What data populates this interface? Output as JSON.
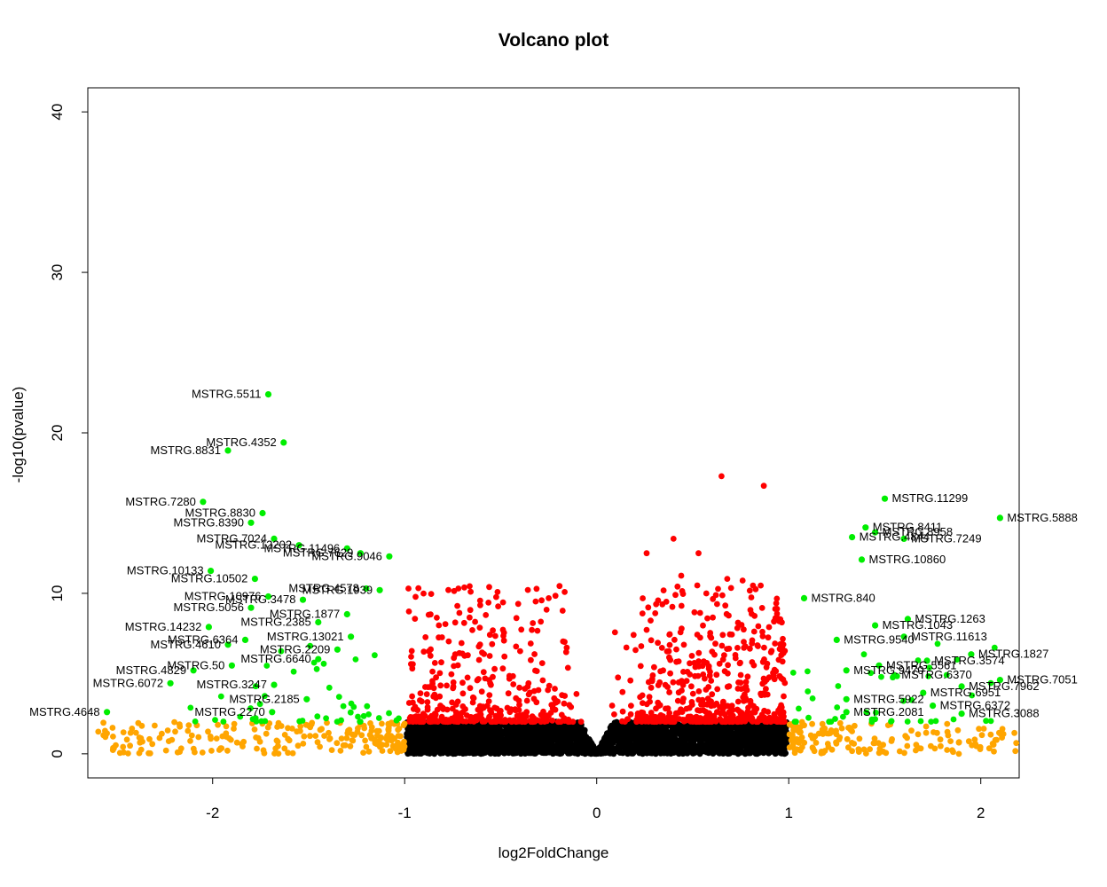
{
  "chart_data": {
    "type": "scatter",
    "title": "Volcano plot",
    "xlabel": "log2FoldChange",
    "ylabel": "-log10(pvalue)",
    "xlim": [
      -2.65,
      2.2
    ],
    "ylim": [
      -1.5,
      41.5
    ],
    "x_ticks": [
      -2,
      -1,
      0,
      1,
      2
    ],
    "y_ticks": [
      0,
      10,
      20,
      30,
      40
    ],
    "grid": false,
    "legend": "none",
    "thresholds": {
      "padj_y": 2,
      "log2fc_abs": 1
    },
    "colors": {
      "not_significant": "#000000",
      "significant": "#ff0000",
      "large_fold_change": "#ffa500",
      "significant_and_large_fold_change": "#00ee00",
      "label": "#000000"
    },
    "highlight_points": [
      {
        "x": -1.71,
        "y": 22.4,
        "label": "MSTRG.5511"
      },
      {
        "x": -1.63,
        "y": 19.4,
        "label": "MSTRG.4352"
      },
      {
        "x": -1.92,
        "y": 18.9,
        "label": "MSTRG.8831"
      },
      {
        "x": -2.05,
        "y": 15.7,
        "label": "MSTRG.7280"
      },
      {
        "x": -1.74,
        "y": 15.0,
        "label": "MSTRG.8830"
      },
      {
        "x": -1.8,
        "y": 14.4,
        "label": "MSTRG.8390"
      },
      {
        "x": -1.68,
        "y": 13.4,
        "label": "MSTRG.7024"
      },
      {
        "x": -1.55,
        "y": 13.0,
        "label": "MSTRG.12202"
      },
      {
        "x": -1.3,
        "y": 12.8,
        "label": "MSTRG.11496"
      },
      {
        "x": -1.23,
        "y": 12.5,
        "label": "MSTRG.7629"
      },
      {
        "x": -1.08,
        "y": 12.3,
        "label": "MSTRG.9046"
      },
      {
        "x": -2.01,
        "y": 11.4,
        "label": "MSTRG.10133"
      },
      {
        "x": -1.78,
        "y": 10.9,
        "label": "MSTRG.10502"
      },
      {
        "x": -1.2,
        "y": 10.3,
        "label": "MSTRG.4578"
      },
      {
        "x": -1.13,
        "y": 10.2,
        "label": "MSTRG.1939"
      },
      {
        "x": -1.71,
        "y": 9.8,
        "label": "MSTRG.10976"
      },
      {
        "x": -1.53,
        "y": 9.6,
        "label": "MSTRG.3478"
      },
      {
        "x": -1.8,
        "y": 9.1,
        "label": "MSTRG.5056"
      },
      {
        "x": -1.3,
        "y": 8.7,
        "label": "MSTRG.1877"
      },
      {
        "x": -1.45,
        "y": 8.2,
        "label": "MSTRG.2385"
      },
      {
        "x": -2.02,
        "y": 7.9,
        "label": "MSTRG.14232"
      },
      {
        "x": -1.28,
        "y": 7.3,
        "label": "MSTRG.13021"
      },
      {
        "x": -1.83,
        "y": 7.1,
        "label": "MSTRG.6364"
      },
      {
        "x": -1.92,
        "y": 6.8,
        "label": "MSTRG.4610"
      },
      {
        "x": -1.35,
        "y": 6.5,
        "label": "MSTRG.2209"
      },
      {
        "x": -1.45,
        "y": 5.9,
        "label": "MSTRG.6640"
      },
      {
        "x": -1.9,
        "y": 5.5,
        "label": "MSTRG.50"
      },
      {
        "x": -2.1,
        "y": 5.2,
        "label": "MSTRG.4829"
      },
      {
        "x": -2.22,
        "y": 4.4,
        "label": "MSTRG.6072"
      },
      {
        "x": -1.68,
        "y": 4.3,
        "label": "MSTRG.3247"
      },
      {
        "x": -1.51,
        "y": 3.4,
        "label": "MSTRG.2185"
      },
      {
        "x": -1.69,
        "y": 2.6,
        "label": "MSTRG.2270"
      },
      {
        "x": -2.55,
        "y": 2.6,
        "label": "MSTRG.4648"
      },
      {
        "x": 1.5,
        "y": 15.9,
        "label": "MSTRG.11299"
      },
      {
        "x": 2.1,
        "y": 14.7,
        "label": "MSTRG.5888"
      },
      {
        "x": 1.4,
        "y": 14.1,
        "label": "MSTRG.8411"
      },
      {
        "x": 1.45,
        "y": 13.8,
        "label": "MSTRG.8958"
      },
      {
        "x": 1.33,
        "y": 13.5,
        "label": "MSTRG.4844"
      },
      {
        "x": 1.6,
        "y": 13.4,
        "label": "MSTRG.7249"
      },
      {
        "x": 1.38,
        "y": 12.1,
        "label": "MSTRG.10860"
      },
      {
        "x": 1.08,
        "y": 9.7,
        "label": "MSTRG.840"
      },
      {
        "x": 1.62,
        "y": 8.4,
        "label": "MSTRG.1263"
      },
      {
        "x": 1.45,
        "y": 8.0,
        "label": "MSTRG.1043"
      },
      {
        "x": 1.6,
        "y": 7.3,
        "label": "MSTRG.11613"
      },
      {
        "x": 1.25,
        "y": 7.1,
        "label": "MSTRG.9540"
      },
      {
        "x": 1.95,
        "y": 6.2,
        "label": "MSTRG.1827"
      },
      {
        "x": 1.72,
        "y": 5.8,
        "label": "MSTRG.3574"
      },
      {
        "x": 1.47,
        "y": 5.5,
        "label": "MSTRG.5561"
      },
      {
        "x": 1.3,
        "y": 5.2,
        "label": "MSTRG.9470"
      },
      {
        "x": 1.55,
        "y": 4.9,
        "label": "MSTRG.6370"
      },
      {
        "x": 2.1,
        "y": 4.6,
        "label": "MSTRG.7051"
      },
      {
        "x": 1.9,
        "y": 4.2,
        "label": "MSTRG.7962"
      },
      {
        "x": 1.7,
        "y": 3.8,
        "label": "MSTRG.6951"
      },
      {
        "x": 1.3,
        "y": 3.4,
        "label": "MSTRG.5922"
      },
      {
        "x": 1.75,
        "y": 3.0,
        "label": "MSTRG.6372"
      },
      {
        "x": 1.3,
        "y": 2.6,
        "label": "MSTRG.2081"
      },
      {
        "x": 1.9,
        "y": 2.5,
        "label": "MSTRG.3088"
      }
    ]
  }
}
